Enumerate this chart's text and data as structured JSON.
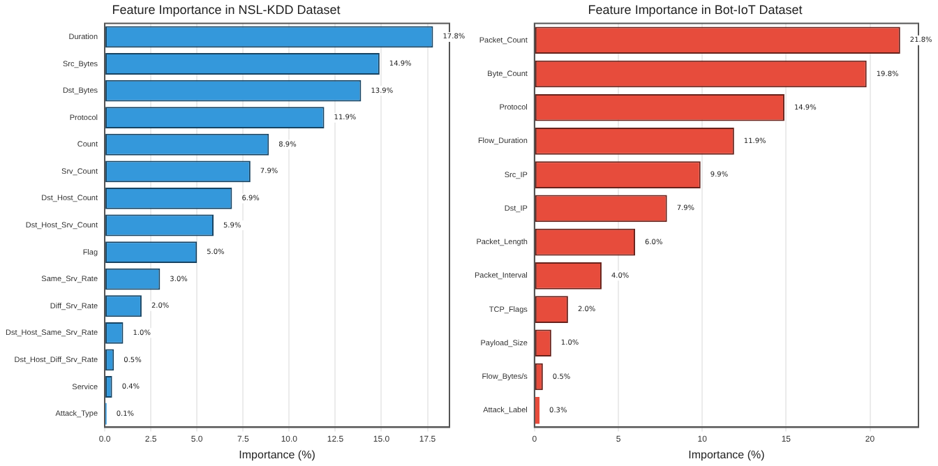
{
  "chart_data": [
    {
      "type": "bar",
      "orientation": "horizontal",
      "title": "Feature Importance in NSL-KDD Dataset",
      "xlabel": "Importance (%)",
      "categories": [
        "Duration",
        "Src_Bytes",
        "Dst_Bytes",
        "Protocol",
        "Count",
        "Srv_Count",
        "Dst_Host_Count",
        "Dst_Host_Srv_Count",
        "Flag",
        "Same_Srv_Rate",
        "Diff_Srv_Rate",
        "Dst_Host_Same_Srv_Rate",
        "Dst_Host_Diff_Srv_Rate",
        "Service",
        "Attack_Type"
      ],
      "values": [
        17.8,
        14.9,
        13.9,
        11.9,
        8.9,
        7.9,
        6.9,
        5.9,
        5.0,
        3.0,
        2.0,
        1.0,
        0.5,
        0.4,
        0.1
      ],
      "value_labels": [
        "17.8%",
        "14.9%",
        "13.9%",
        "11.9%",
        "8.9%",
        "7.9%",
        "6.9%",
        "5.9%",
        "5.0%",
        "3.0%",
        "2.0%",
        "1.0%",
        "0.5%",
        "0.4%",
        "0.1%"
      ],
      "color": "#3498db",
      "xlim": [
        0,
        18.69
      ],
      "xticks": [
        {
          "value": 0,
          "label": "0.0"
        },
        2.5,
        {
          "value": 5,
          "label": "5.0"
        },
        7.5,
        {
          "value": 10,
          "label": "10.0"
        },
        12.5,
        {
          "value": 15,
          "label": "15.0"
        },
        17.5
      ],
      "grid": "x"
    },
    {
      "type": "bar",
      "orientation": "horizontal",
      "title": "Feature Importance in Bot-IoT Dataset",
      "xlabel": "Importance (%)",
      "categories": [
        "Packet_Count",
        "Byte_Count",
        "Protocol",
        "Flow_Duration",
        "Src_IP",
        "Dst_IP",
        "Packet_Length",
        "Packet_Interval",
        "TCP_Flags",
        "Payload_Size",
        "Flow_Bytes/s",
        "Attack_Label"
      ],
      "values": [
        21.8,
        19.8,
        14.9,
        11.9,
        9.9,
        7.9,
        6.0,
        4.0,
        2.0,
        1.0,
        0.5,
        0.3
      ],
      "value_labels": [
        "21.8%",
        "19.8%",
        "14.9%",
        "11.9%",
        "9.9%",
        "7.9%",
        "6.0%",
        "4.0%",
        "2.0%",
        "1.0%",
        "0.5%",
        "0.3%"
      ],
      "color": "#e74c3c",
      "xlim": [
        0,
        22.89
      ],
      "xticks": [
        0,
        5,
        10,
        15,
        20
      ],
      "grid": "x"
    }
  ]
}
